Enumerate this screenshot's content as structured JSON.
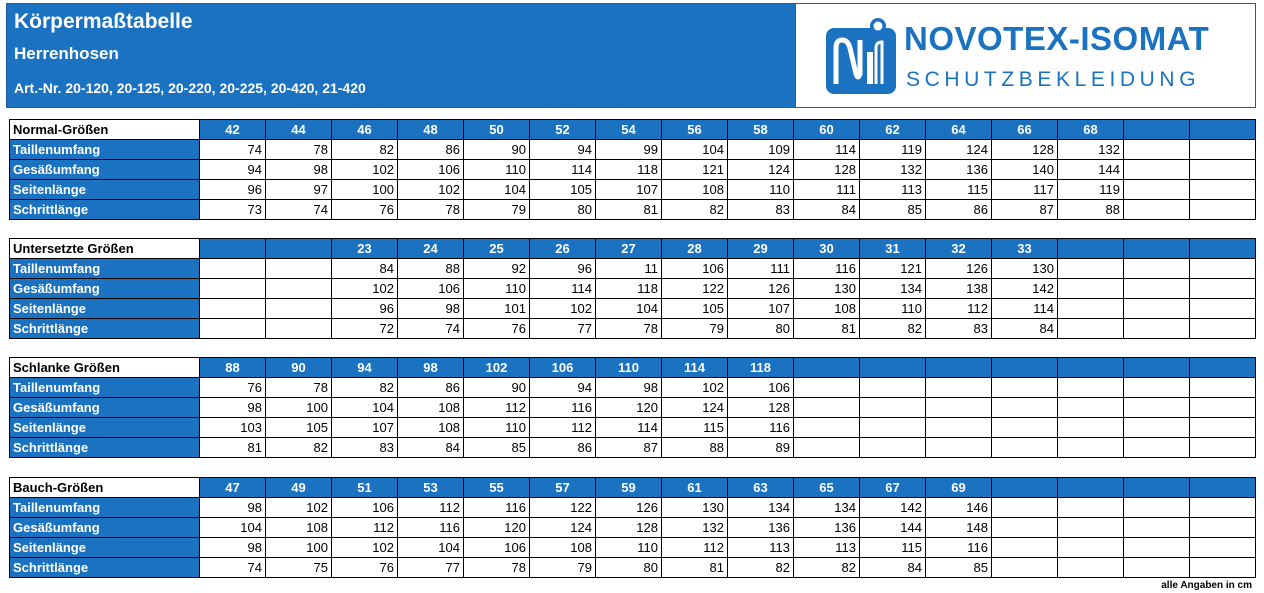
{
  "header": {
    "title": "Körpermaßtabelle",
    "subtitle": "Herrenhosen",
    "article_numbers": "Art.-Nr. 20-120, 20-125, 20-220, 20-225, 20-420, 21-420",
    "logo_icon": "ni-monogram-logo",
    "brand_name": "NOVOTEX-ISOMAT",
    "brand_tagline": "SCHUTZBEKLEIDUNG",
    "accent_color": "#1b72c0"
  },
  "tables": [
    {
      "label": "Normal-Größen",
      "sizes": [
        "42",
        "44",
        "46",
        "48",
        "50",
        "52",
        "54",
        "56",
        "58",
        "60",
        "62",
        "64",
        "66",
        "68",
        "",
        ""
      ],
      "rows": [
        {
          "label": "Taillenumfang",
          "values": [
            "74",
            "78",
            "82",
            "86",
            "90",
            "94",
            "99",
            "104",
            "109",
            "114",
            "119",
            "124",
            "128",
            "132",
            "",
            ""
          ]
        },
        {
          "label": "Gesäßumfang",
          "values": [
            "94",
            "98",
            "102",
            "106",
            "110",
            "114",
            "118",
            "121",
            "124",
            "128",
            "132",
            "136",
            "140",
            "144",
            "",
            ""
          ]
        },
        {
          "label": "Seitenlänge",
          "values": [
            "96",
            "97",
            "100",
            "102",
            "104",
            "105",
            "107",
            "108",
            "110",
            "111",
            "113",
            "115",
            "117",
            "119",
            "",
            ""
          ]
        },
        {
          "label": "Schrittlänge",
          "values": [
            "73",
            "74",
            "76",
            "78",
            "79",
            "80",
            "81",
            "82",
            "83",
            "84",
            "85",
            "86",
            "87",
            "88",
            "",
            ""
          ]
        }
      ]
    },
    {
      "label": "Untersetzte Größen",
      "sizes": [
        "",
        "",
        "23",
        "24",
        "25",
        "26",
        "27",
        "28",
        "29",
        "30",
        "31",
        "32",
        "33",
        "",
        "",
        ""
      ],
      "rows": [
        {
          "label": "Taillenumfang",
          "values": [
            "",
            "",
            "84",
            "88",
            "92",
            "96",
            "11",
            "106",
            "111",
            "116",
            "121",
            "126",
            "130",
            "",
            "",
            ""
          ]
        },
        {
          "label": "Gesäßumfang",
          "values": [
            "",
            "",
            "102",
            "106",
            "110",
            "114",
            "118",
            "122",
            "126",
            "130",
            "134",
            "138",
            "142",
            "",
            "",
            ""
          ]
        },
        {
          "label": "Seitenlänge",
          "values": [
            "",
            "",
            "96",
            "98",
            "101",
            "102",
            "104",
            "105",
            "107",
            "108",
            "110",
            "112",
            "114",
            "",
            "",
            ""
          ]
        },
        {
          "label": "Schrittlänge",
          "values": [
            "",
            "",
            "72",
            "74",
            "76",
            "77",
            "78",
            "79",
            "80",
            "81",
            "82",
            "83",
            "84",
            "",
            "",
            ""
          ]
        }
      ]
    },
    {
      "label": "Schlanke Größen",
      "sizes": [
        "88",
        "90",
        "94",
        "98",
        "102",
        "106",
        "110",
        "114",
        "118",
        "",
        "",
        "",
        "",
        "",
        "",
        ""
      ],
      "rows": [
        {
          "label": "Taillenumfang",
          "values": [
            "76",
            "78",
            "82",
            "86",
            "90",
            "94",
            "98",
            "102",
            "106",
            "",
            "",
            "",
            "",
            "",
            "",
            ""
          ]
        },
        {
          "label": "Gesäßumfang",
          "values": [
            "98",
            "100",
            "104",
            "108",
            "112",
            "116",
            "120",
            "124",
            "128",
            "",
            "",
            "",
            "",
            "",
            "",
            ""
          ]
        },
        {
          "label": "Seitenlänge",
          "values": [
            "103",
            "105",
            "107",
            "108",
            "110",
            "112",
            "114",
            "115",
            "116",
            "",
            "",
            "",
            "",
            "",
            "",
            ""
          ]
        },
        {
          "label": "Schrittlänge",
          "values": [
            "81",
            "82",
            "83",
            "84",
            "85",
            "86",
            "87",
            "88",
            "89",
            "",
            "",
            "",
            "",
            "",
            "",
            ""
          ]
        }
      ]
    },
    {
      "label": "Bauch-Größen",
      "sizes": [
        "47",
        "49",
        "51",
        "53",
        "55",
        "57",
        "59",
        "61",
        "63",
        "65",
        "67",
        "69",
        "",
        "",
        "",
        ""
      ],
      "rows": [
        {
          "label": "Taillenumfang",
          "values": [
            "98",
            "102",
            "106",
            "112",
            "116",
            "122",
            "126",
            "130",
            "134",
            "134",
            "142",
            "146",
            "",
            "",
            "",
            ""
          ]
        },
        {
          "label": "Gesäßumfang",
          "values": [
            "104",
            "108",
            "112",
            "116",
            "120",
            "124",
            "128",
            "132",
            "136",
            "136",
            "144",
            "148",
            "",
            "",
            "",
            ""
          ]
        },
        {
          "label": "Seitenlänge",
          "values": [
            "98",
            "100",
            "102",
            "104",
            "106",
            "108",
            "110",
            "112",
            "113",
            "113",
            "115",
            "116",
            "",
            "",
            "",
            ""
          ]
        },
        {
          "label": "Schrittlänge",
          "values": [
            "74",
            "75",
            "76",
            "77",
            "78",
            "79",
            "80",
            "81",
            "82",
            "82",
            "84",
            "85",
            "",
            "",
            "",
            ""
          ]
        }
      ]
    }
  ],
  "footer": {
    "note": "alle Angaben in cm"
  }
}
